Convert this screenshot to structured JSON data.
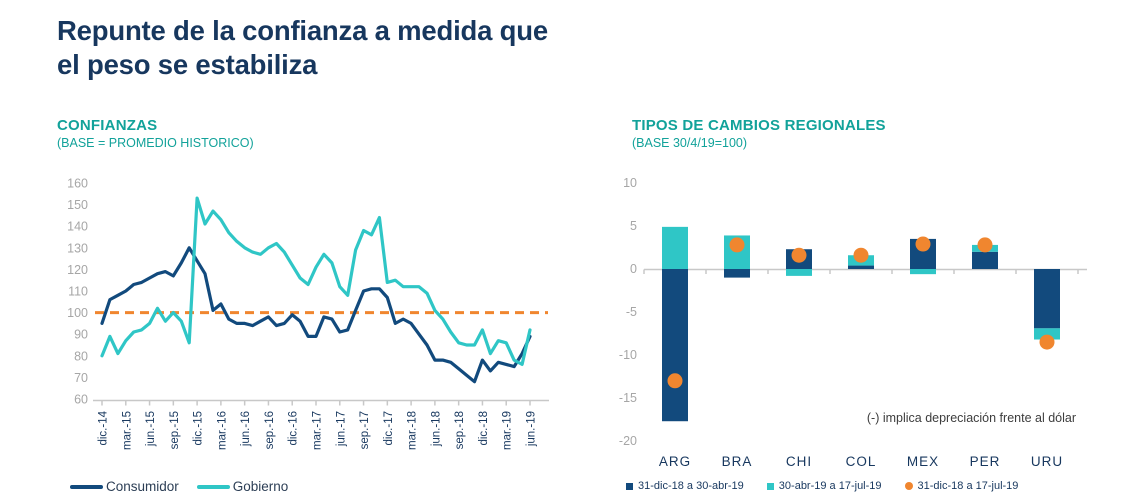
{
  "page": {
    "title_line1": "Repunte de la confianza a medida que",
    "title_line2": "el peso se estabiliza"
  },
  "colors": {
    "navy": "#124a7d",
    "teal": "#2fc6c6",
    "orange": "#f0862f",
    "title_navy": "#17375e",
    "header_teal": "#12a29a",
    "axis_text_gray": "#a6a6a6",
    "axis_line_gray": "#c8c8c8",
    "annotation_gray": "#3d3d3d"
  },
  "chart_data": [
    {
      "id": "confianzas",
      "type": "line",
      "title": "CONFIANZAS",
      "subtitle": "(BASE = PROMEDIO HISTORICO)",
      "x_points": 55,
      "x_range": "dic-14 a jun-19 (mensual)",
      "x_tick_labels": [
        "dic.-14",
        "mar.-15",
        "jun.-15",
        "sep.-15",
        "dic.-15",
        "mar.-16",
        "jun.-16",
        "sep.-16",
        "dic.-16",
        "mar.-17",
        "jun.-17",
        "sep.-17",
        "dic.-17",
        "mar.-18",
        "jun.-18",
        "sep.-18",
        "dic.-18",
        "mar.-19",
        "jun.-19"
      ],
      "y_ticks": [
        60,
        70,
        80,
        90,
        100,
        110,
        120,
        130,
        140,
        150,
        160
      ],
      "ylim": [
        60,
        160
      ],
      "grid": false,
      "legend_position": "bottom",
      "reference_line": {
        "value": 100,
        "style": "dashed",
        "color": "#f0862f"
      },
      "series": [
        {
          "name": "Consumidor",
          "color": "#124a7d",
          "values": [
            95,
            106,
            108,
            110,
            113,
            114,
            116,
            118,
            119,
            117,
            123,
            130,
            124,
            118,
            101,
            104,
            97,
            95,
            95,
            94,
            96,
            98,
            94,
            95,
            99,
            96,
            89,
            89,
            98,
            97,
            91,
            92,
            101,
            110,
            111,
            111,
            107,
            95,
            97,
            95,
            90,
            85,
            78,
            78,
            77,
            74,
            71,
            68,
            78,
            73,
            77,
            76,
            75,
            81,
            89
          ]
        },
        {
          "name": "Gobierno",
          "color": "#2fc6c6",
          "values": [
            80,
            89,
            81,
            87,
            91,
            92,
            95,
            102,
            96,
            100,
            96,
            86,
            153,
            141,
            147,
            143,
            137,
            133,
            130,
            128,
            127,
            130,
            132,
            128,
            122,
            116,
            113,
            121,
            127,
            123,
            112,
            108,
            129,
            138,
            136,
            144,
            114,
            115,
            112,
            112,
            112,
            109,
            101,
            97,
            91,
            86,
            85,
            85,
            92,
            81,
            87,
            86,
            78,
            76,
            92
          ]
        }
      ]
    },
    {
      "id": "tipos-de-cambio-regionales",
      "type": "bar",
      "title": "TIPOS DE CAMBIOS REGIONALES",
      "subtitle": "(BASE 30/4/19=100)",
      "categories": [
        "ARG",
        "BRA",
        "CHI",
        "COL",
        "MEX",
        "PER",
        "URU"
      ],
      "y_ticks": [
        10,
        5,
        0,
        -5,
        -10,
        -15,
        -20
      ],
      "ylim": [
        -20,
        10
      ],
      "grid": false,
      "legend_position": "bottom",
      "annotation": "(-) implica depreciación frente al dólar",
      "series": [
        {
          "name": "31-dic-18 a 30-abr-19",
          "type": "bar",
          "color": "#124a7d",
          "values": [
            -17.7,
            -1.0,
            2.3,
            0.4,
            3.5,
            2.0,
            -6.9
          ]
        },
        {
          "name": "30-abr-19 a 17-jul-19",
          "type": "bar",
          "color": "#2fc6c6",
          "values": [
            4.9,
            3.9,
            -0.8,
            1.2,
            -0.6,
            0.8,
            -1.3
          ]
        },
        {
          "name": "31-dic-18 a 17-jul-19",
          "type": "point",
          "color": "#f0862f",
          "values": [
            -13.0,
            2.8,
            1.6,
            1.6,
            2.9,
            2.8,
            -8.5
          ]
        }
      ]
    }
  ]
}
